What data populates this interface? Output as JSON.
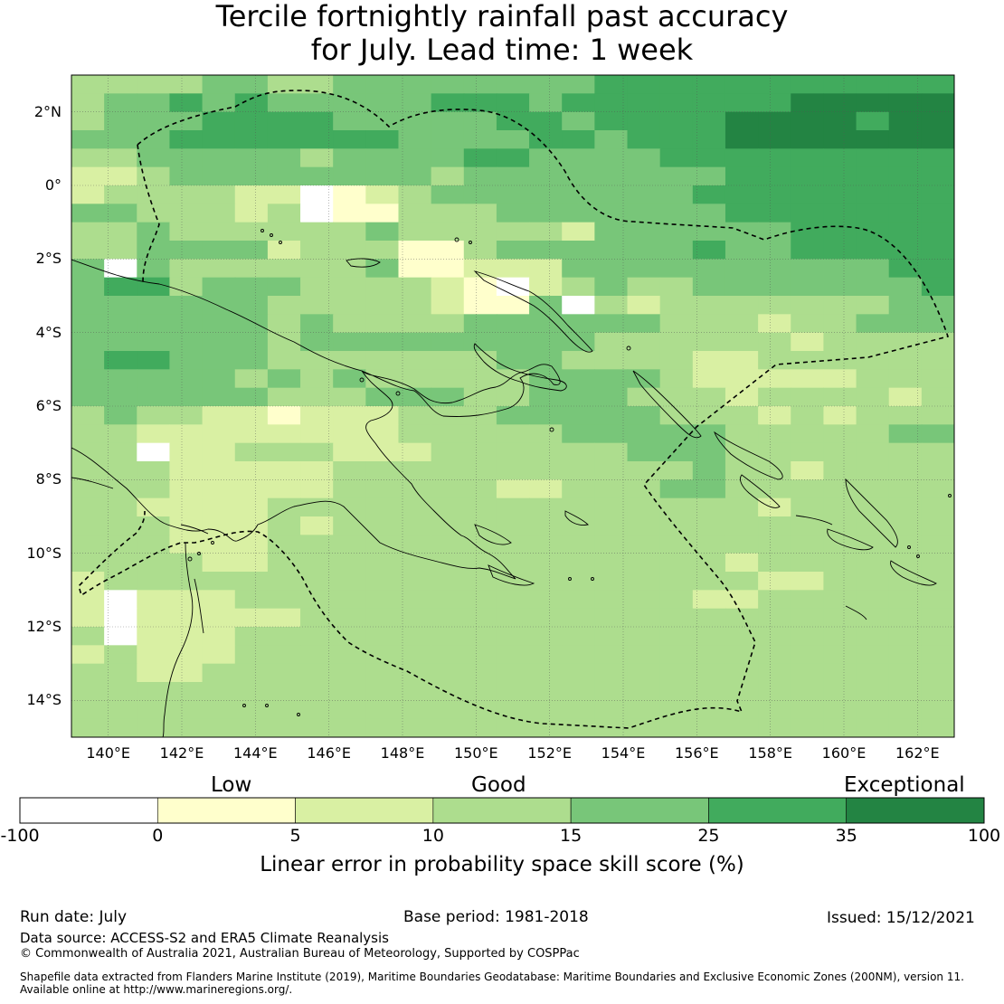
{
  "title": {
    "line1": "Tercile fortnightly rainfall past accuracy",
    "line2": "for July. Lead time: 1 week"
  },
  "map": {
    "region": "Papua New Guinea and Solomon Islands",
    "lat_ticks": [
      "2°N",
      "0°",
      "2°S",
      "4°S",
      "6°S",
      "8°S",
      "10°S",
      "12°S",
      "14°S"
    ],
    "lon_ticks": [
      "140°E",
      "142°E",
      "144°E",
      "146°E",
      "148°E",
      "150°E",
      "152°E",
      "154°E",
      "156°E",
      "158°E",
      "160°E",
      "162°E"
    ],
    "lon_range": [
      139,
      163
    ],
    "lat_range": [
      -15,
      3
    ],
    "boundary_style": "dashed black line: maritime EEZ boundary",
    "coastline_style": "thin black line"
  },
  "colorbar": {
    "categories": [
      "Low",
      "Good",
      "Exceptional"
    ],
    "tick_labels": [
      "-100",
      "0",
      "5",
      "10",
      "15",
      "25",
      "35",
      "100"
    ],
    "bins": [
      {
        "from": -100,
        "to": 0,
        "color": "#ffffff"
      },
      {
        "from": 0,
        "to": 5,
        "color": "#ffffcc"
      },
      {
        "from": 5,
        "to": 10,
        "color": "#d9f0a3"
      },
      {
        "from": 10,
        "to": 15,
        "color": "#addd8e"
      },
      {
        "from": 15,
        "to": 25,
        "color": "#78c679"
      },
      {
        "from": 25,
        "to": 35,
        "color": "#41ab5d"
      },
      {
        "from": 35,
        "to": 100,
        "color": "#238443"
      }
    ],
    "label": "Linear error in probability space skill score (%)"
  },
  "footer": {
    "run_date": "Run date: July",
    "base_period": "Base period: 1981-2018",
    "issued": "Issued: 15/12/2021",
    "data_source": "Data source: ACCESS-S2 and ERA5 Climate Reanalysis",
    "copyright": "© Commonwealth of Australia 2021, Australian Bureau of Meteorology, Supported by COSPPac",
    "shapefile_line1": "Shapefile data extracted from Flanders Marine Institute (2019), Maritime Boundaries Geodatabase: Maritime Boundaries and Exclusive Economic Zones (200NM), version 11.",
    "shapefile_line2": "Available online at http://www.marineregions.org/."
  }
}
